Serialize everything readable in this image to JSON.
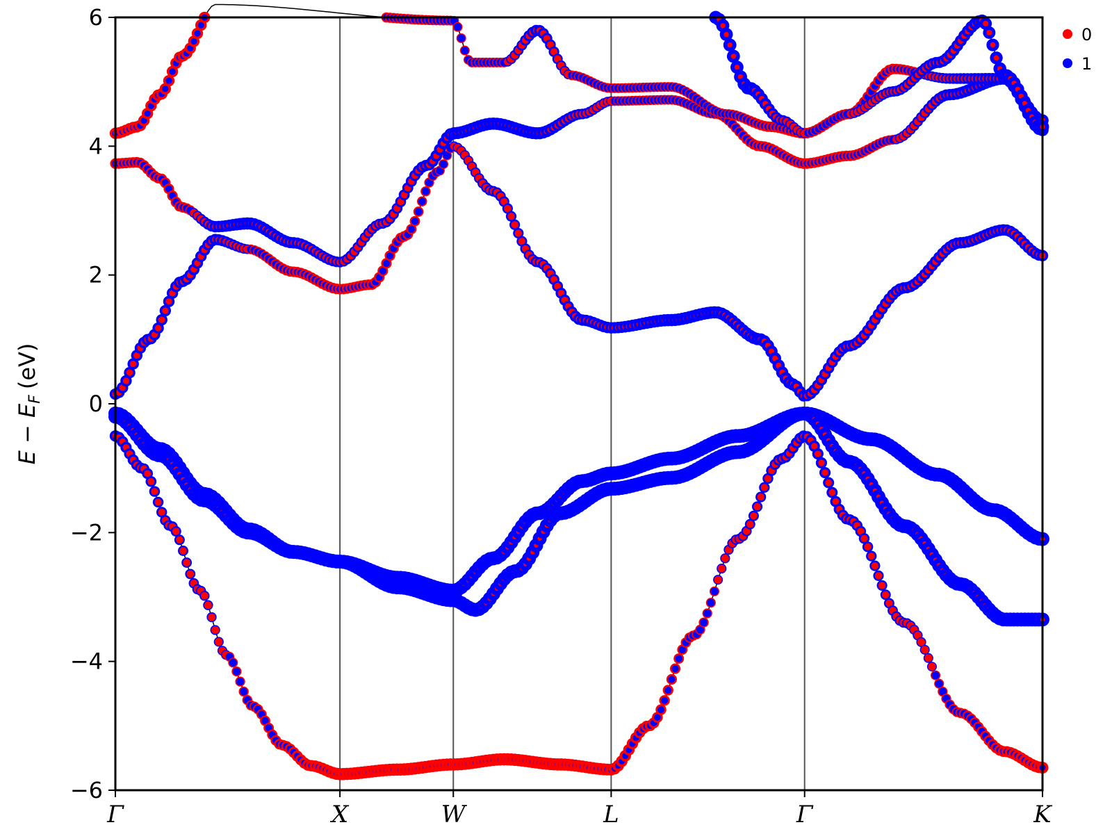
{
  "chart_data": {
    "type": "scatter",
    "title": "",
    "ylabel": "E − E_F (eV)",
    "ylabel_parts": {
      "main": "E − E",
      "sub": "F",
      "unit": "(eV)"
    },
    "ylim": [
      -6,
      6
    ],
    "yticks": [
      -6,
      -4,
      -2,
      0,
      2,
      4,
      6
    ],
    "ytick_labels": [
      "−6",
      "−4",
      "−2",
      "0",
      "2",
      "4",
      "6"
    ],
    "xlim": [
      0,
      4.17
    ],
    "high_symmetry_points": [
      {
        "label": "Γ",
        "x": 0.0
      },
      {
        "label": "X",
        "x": 1.01
      },
      {
        "label": "W",
        "x": 1.52
      },
      {
        "label": "L",
        "x": 2.23
      },
      {
        "label": "Γ",
        "x": 3.1
      },
      {
        "label": "K",
        "x": 4.17
      }
    ],
    "grid": false,
    "legend_position": "top-right",
    "colors": {
      "series_0": "#ff0000",
      "series_1": "#0000ff",
      "band_line": "#000000",
      "kpath_line": "#555555"
    },
    "series": [
      {
        "name": "0",
        "color": "#ff0000"
      },
      {
        "name": "1",
        "color": "#0000ff"
      }
    ],
    "bands": [
      {
        "id": "b1",
        "k": [
          0,
          0.12,
          0.25,
          0.38,
          0.5,
          0.62,
          0.75,
          0.88,
          1.01,
          1.27,
          1.52,
          1.75,
          2.0,
          2.23,
          2.4,
          2.6,
          2.8,
          3.0,
          3.1,
          3.3,
          3.55,
          3.8,
          4.0,
          4.17
        ],
        "e": [
          -0.5,
          -1.0,
          -1.9,
          -2.9,
          -3.9,
          -4.7,
          -5.3,
          -5.62,
          -5.75,
          -5.68,
          -5.6,
          -5.52,
          -5.6,
          -5.68,
          -5.0,
          -3.6,
          -2.1,
          -0.85,
          -0.5,
          -1.8,
          -3.4,
          -4.8,
          -5.4,
          -5.65
        ],
        "weight": [
          0.3,
          0.35,
          0.4,
          0.45,
          0.5,
          0.55,
          0.6,
          0.7,
          0.8,
          0.8,
          0.8,
          0.8,
          0.8,
          0.75,
          0.65,
          0.55,
          0.45,
          0.35,
          0.3,
          0.35,
          0.45,
          0.55,
          0.65,
          0.75
        ]
      },
      {
        "id": "b2",
        "k": [
          0,
          0.2,
          0.4,
          0.6,
          0.8,
          1.01,
          1.27,
          1.52,
          1.7,
          1.9,
          2.1,
          2.23,
          2.5,
          2.8,
          3.1,
          3.4,
          3.7,
          3.95,
          4.17
        ],
        "e": [
          -0.15,
          -0.7,
          -1.4,
          -1.95,
          -2.3,
          -2.45,
          -2.7,
          -2.9,
          -2.4,
          -1.7,
          -1.2,
          -1.08,
          -0.85,
          -0.5,
          -0.15,
          -0.55,
          -1.1,
          -1.65,
          -2.1
        ],
        "weight": [
          0.0,
          0.0,
          0.0,
          0.0,
          0.0,
          0.0,
          0.0,
          0.0,
          0.0,
          0.0,
          0.0,
          0.0,
          0.0,
          0.0,
          0.0,
          0.0,
          0.0,
          0.0,
          0.0
        ]
      },
      {
        "id": "b3",
        "k": [
          0,
          0.2,
          0.4,
          0.6,
          0.8,
          1.01,
          1.27,
          1.52,
          1.62,
          1.8,
          2.0,
          2.23,
          2.5,
          2.8,
          3.1,
          3.3,
          3.55,
          3.8,
          4.0,
          4.17
        ],
        "e": [
          -0.2,
          -0.8,
          -1.5,
          -2.0,
          -2.3,
          -2.45,
          -2.85,
          -3.05,
          -3.2,
          -2.6,
          -1.7,
          -1.32,
          -1.15,
          -0.75,
          -0.15,
          -0.9,
          -1.9,
          -2.8,
          -3.35,
          -3.35
        ],
        "weight": [
          0.0,
          0.0,
          0.0,
          0.0,
          0.0,
          0.0,
          0.0,
          0.0,
          0.0,
          0.0,
          0.0,
          0.0,
          0.0,
          0.0,
          0.0,
          0.0,
          0.0,
          0.0,
          0.0,
          0.0
        ]
      },
      {
        "id": "b4",
        "k": [
          0,
          0.15,
          0.3,
          0.45,
          0.6,
          0.8,
          1.01,
          1.15,
          1.3,
          1.45,
          1.52,
          1.7,
          1.9,
          2.1,
          2.23,
          2.5,
          2.7,
          2.9,
          3.05,
          3.1,
          3.3,
          3.55,
          3.8,
          4.0,
          4.17
        ],
        "e": [
          0.15,
          1.0,
          1.9,
          2.55,
          2.4,
          2.05,
          1.78,
          1.85,
          2.6,
          3.6,
          4.0,
          3.3,
          2.2,
          1.3,
          1.18,
          1.3,
          1.42,
          1.0,
          0.3,
          0.12,
          0.9,
          1.8,
          2.5,
          2.7,
          2.3
        ],
        "weight": [
          0.3,
          0.3,
          0.3,
          0.3,
          0.5,
          0.6,
          0.6,
          0.6,
          0.6,
          0.5,
          0.5,
          0.4,
          0.4,
          0.3,
          0.3,
          0.2,
          0.2,
          0.2,
          0.2,
          0.3,
          0.3,
          0.3,
          0.3,
          0.3,
          0.3
        ]
      },
      {
        "id": "b5",
        "k": [
          0,
          0.1,
          0.2,
          0.3,
          0.45,
          0.6,
          0.8,
          1.01,
          1.2,
          1.4,
          1.52,
          1.7,
          1.9,
          2.1,
          2.23,
          2.5,
          2.7,
          2.9,
          3.1,
          3.3,
          3.5,
          3.75,
          4.0,
          4.17
        ],
        "e": [
          3.73,
          3.75,
          3.5,
          3.05,
          2.75,
          2.8,
          2.5,
          2.2,
          2.8,
          3.7,
          4.2,
          4.35,
          4.2,
          4.5,
          4.7,
          4.72,
          4.5,
          4.0,
          3.73,
          3.85,
          4.1,
          4.8,
          5.05,
          4.25
        ],
        "weight": [
          0.6,
          0.6,
          0.6,
          0.6,
          0.3,
          0.2,
          0.3,
          0.4,
          0.4,
          0.3,
          0.2,
          0.2,
          0.2,
          0.4,
          0.5,
          0.5,
          0.5,
          0.6,
          0.6,
          0.6,
          0.5,
          0.3,
          0.2,
          0.2
        ]
      },
      {
        "id": "b6",
        "k": [
          0,
          0.1,
          0.2,
          0.3,
          0.45,
          1.52,
          1.6,
          1.75,
          1.9,
          2.05,
          2.23,
          2.5,
          2.75,
          2.95,
          3.1,
          3.3,
          3.5,
          3.75,
          4.0,
          4.17
        ],
        "e": [
          4.2,
          4.3,
          4.8,
          5.4,
          6.2,
          5.95,
          5.3,
          5.3,
          5.8,
          5.1,
          4.9,
          4.92,
          4.5,
          4.3,
          4.2,
          4.5,
          5.2,
          5.05,
          5.05,
          4.4
        ],
        "weight": [
          0.7,
          0.7,
          0.7,
          0.7,
          0.7,
          0.5,
          0.5,
          0.5,
          0.3,
          0.5,
          0.5,
          0.5,
          0.5,
          0.6,
          0.6,
          0.6,
          0.6,
          0.4,
          0.3,
          0.2
        ]
      },
      {
        "id": "b7",
        "k": [
          2.7,
          2.85,
          3.0,
          3.1,
          3.3,
          3.5,
          3.7,
          3.9,
          4.0,
          4.17
        ],
        "e": [
          6.0,
          4.9,
          4.4,
          4.2,
          4.5,
          4.85,
          5.3,
          5.95,
          5.1,
          4.3
        ],
        "weight": [
          0.1,
          0.1,
          0.4,
          0.5,
          0.5,
          0.4,
          0.3,
          0.2,
          0.1,
          0.1
        ]
      }
    ]
  }
}
